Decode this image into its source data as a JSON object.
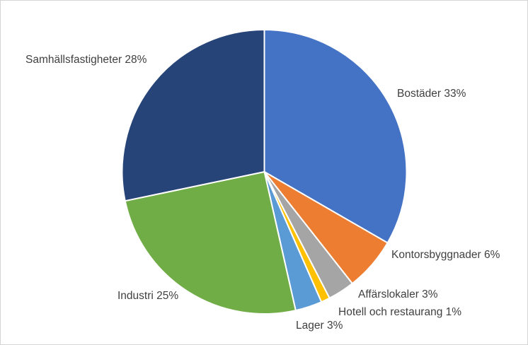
{
  "chart_data": {
    "type": "pie",
    "title": "",
    "unit": "%",
    "start_angle_deg": 0,
    "direction": "clockwise",
    "legend": "none",
    "background_color": "#ffffff",
    "label_color": "#404040",
    "slice_border_color": "#ffffff",
    "slices": [
      {
        "name": "Bostäder",
        "value": 33,
        "label": "Bostäder 33%",
        "color": "#4472C4"
      },
      {
        "name": "Kontorsbyggnader",
        "value": 6,
        "label": "Kontorsbyggnader 6%",
        "color": "#ED7D31"
      },
      {
        "name": "Affärslokaler",
        "value": 3,
        "label": "Affärslokaler 3%",
        "color": "#A5A5A5"
      },
      {
        "name": "Hotell och restaurang",
        "value": 1,
        "label": "Hotell och restaurang 1%",
        "color": "#FFC000"
      },
      {
        "name": "Lager",
        "value": 3,
        "label": "Lager 3%",
        "color": "#5B9BD5"
      },
      {
        "name": "Industri",
        "value": 25,
        "label": "Industri 25%",
        "color": "#70AD47"
      },
      {
        "name": "Samhällsfastigheter",
        "value": 28,
        "label": "Samhällsfastigheter 28%",
        "color": "#264478"
      }
    ]
  }
}
